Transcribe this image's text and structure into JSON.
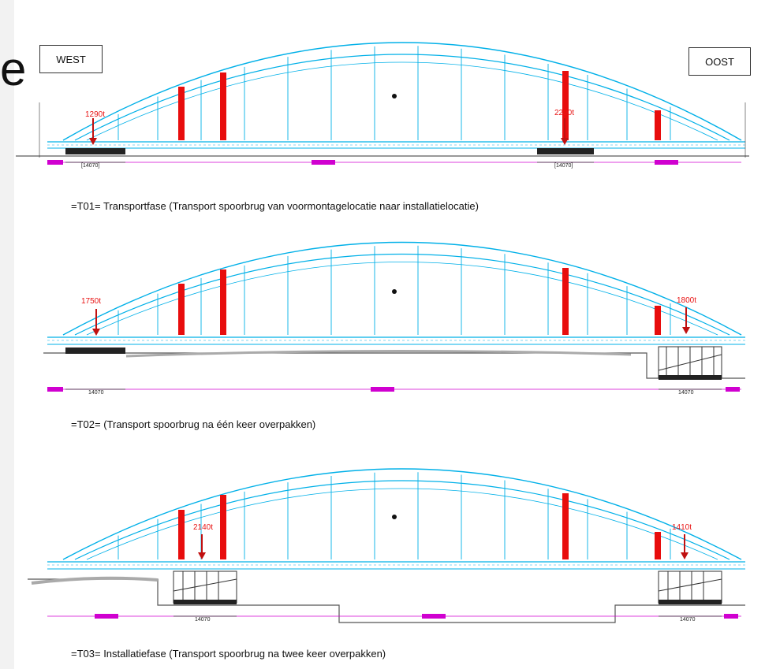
{
  "labels": {
    "west": "WEST",
    "oost": "OOST",
    "cut_letter": "e"
  },
  "phases": [
    {
      "caption": "=T01= Transportfase (Transport spoorbrug van voormontagelocatie naar installatielocatie)",
      "loads": [
        "1290t",
        "2290t"
      ],
      "dims": [
        "[14070]",
        "[14070]"
      ]
    },
    {
      "caption": "=T02= (Transport spoorbrug na één keer overpakken)",
      "loads": [
        "1750t",
        "1800t"
      ],
      "dims": [
        "14070",
        "14070"
      ]
    },
    {
      "caption": "=T03= Installatiefase (Transport spoorbrug na twee keer overpakken)",
      "loads": [
        "2140t",
        "1410t"
      ],
      "dims": [
        "14070",
        "14070"
      ]
    }
  ],
  "colors": {
    "arch": "#00b0e8",
    "dimension": "#d000d0",
    "load": "#e81414"
  }
}
